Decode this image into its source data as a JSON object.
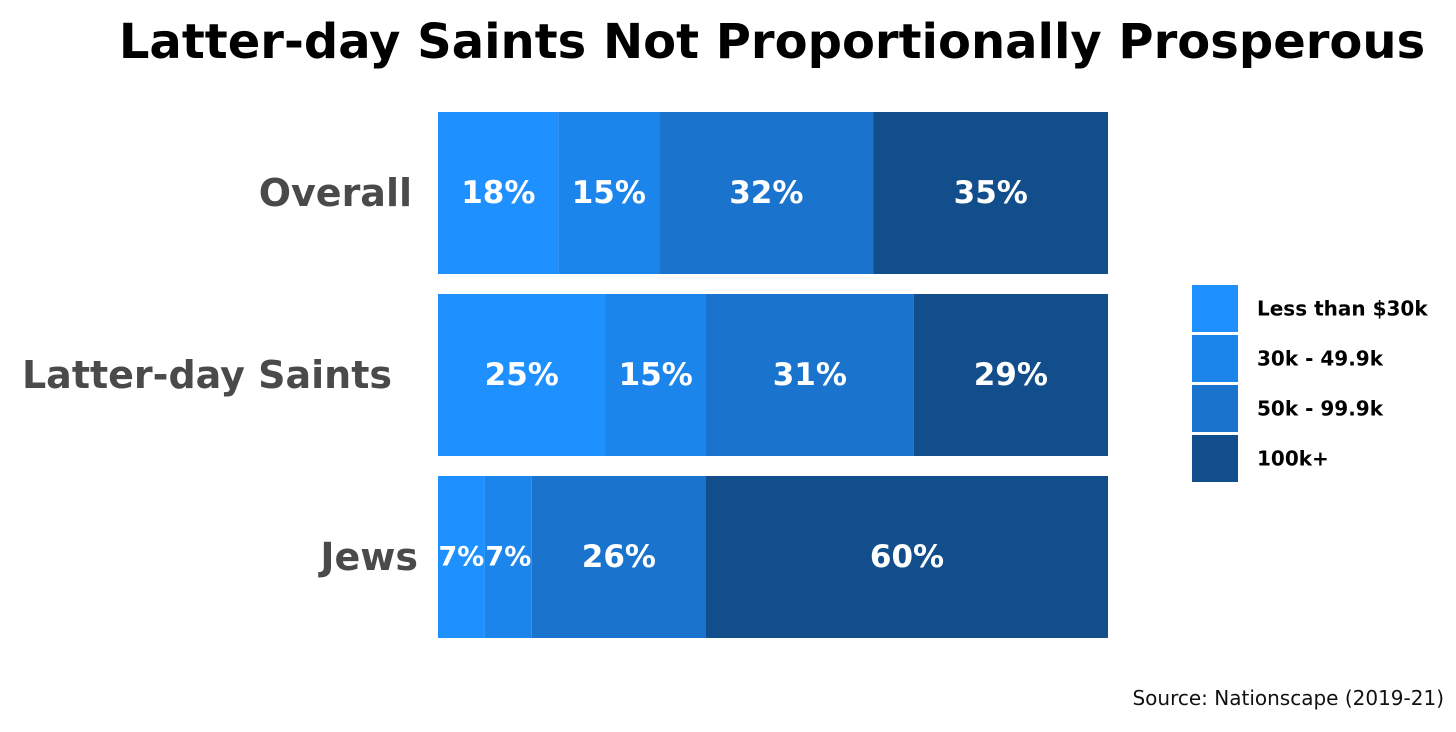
{
  "chart_data": {
    "type": "bar",
    "orientation": "horizontal",
    "stacked": true,
    "percent_stacked": true,
    "title": "Latter-day Saints Not Proportionally Prosperous",
    "categories": [
      "Overall",
      "Latter-day Saints",
      "Jews"
    ],
    "series": [
      {
        "name": "Less than $30k",
        "color": "#1e90ff",
        "values": [
          18,
          25,
          7
        ]
      },
      {
        "name": "30k - 49.9k",
        "color": "#1c85ec",
        "values": [
          15,
          15,
          7
        ]
      },
      {
        "name": "50k - 99.9k",
        "color": "#1a73cc",
        "values": [
          32,
          31,
          26
        ]
      },
      {
        "name": "100k+",
        "color": "#134e8c",
        "values": [
          35,
          29,
          60
        ]
      }
    ],
    "value_suffix": "%",
    "legend_position": "right",
    "xlim": [
      0,
      100
    ],
    "grid": false,
    "source": "Source: Nationscape (2019-21)"
  }
}
